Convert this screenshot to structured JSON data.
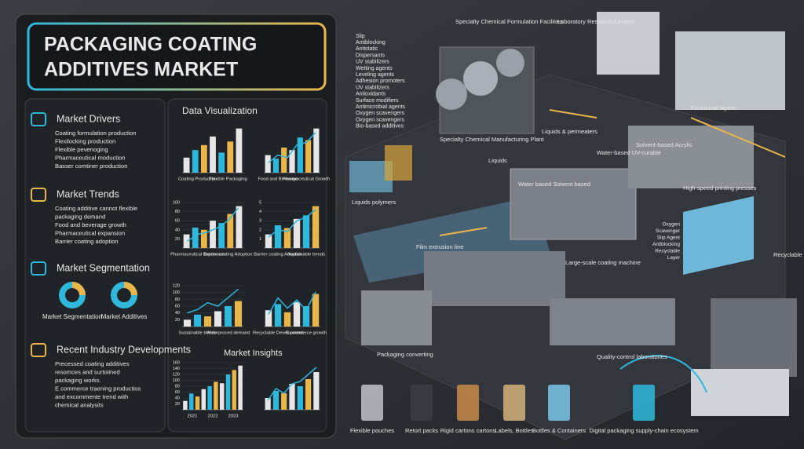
{
  "header": {
    "title_line1": "PACKAGING COATING",
    "title_line2": "ADDITIVES MARKET"
  },
  "sections": [
    {
      "title": "Market Drivers",
      "items": [
        "Coating formulation production",
        "Flexilocking production",
        "Flexible pevenoging",
        "Pharmaceutical moduction",
        "Basser comtiner production"
      ]
    },
    {
      "title": "Market Trends",
      "items": [
        "Coating additive cannot flexible",
        "packaging demand",
        "Food and beverage growth",
        "Pharmaceutical expansion",
        "Barrier coating adoption"
      ]
    },
    {
      "title": "Market Segmentation",
      "items": [
        "Market Segmentation",
        "Market Additives"
      ]
    },
    {
      "title": "Recent Industry Developments",
      "items": [
        "Precessed coating additives",
        "resomces and surtoiined",
        "packaging works.",
        "E commerce traening productios",
        "and excommente trend with",
        "chemical analysits"
      ]
    }
  ],
  "data_visualization": {
    "title": "Data Visualization",
    "insights_title": "Market Insights",
    "palette": [
      "#e6e6e6",
      "#2fb8dc",
      "#e8b64a"
    ],
    "charts": [
      {
        "labels": [
          "Coating Production",
          "Flexible Packaging"
        ],
        "ylim": [
          0,
          100
        ],
        "values": [
          30,
          45,
          55,
          72,
          40,
          62,
          88
        ]
      },
      {
        "labels": [
          "Food and Beverage",
          "Pharmaceutical Growth"
        ],
        "ylim": [
          0,
          100
        ],
        "values": [
          35,
          28,
          50,
          45,
          70,
          65,
          88
        ],
        "line": [
          20,
          35,
          30,
          55,
          60,
          80
        ]
      },
      {
        "labels": [
          "Pharmaceutical Expansion",
          "Barrier coating Adoption"
        ],
        "ylim": [
          0,
          100
        ],
        "yticks": [
          20,
          40,
          60,
          80,
          100
        ],
        "values": [
          30,
          45,
          40,
          60,
          55,
          75,
          92
        ],
        "line": [
          15,
          30,
          35,
          45,
          60,
          88
        ]
      },
      {
        "labels": [
          "Barrier coating Adoption",
          "Sustainable trends"
        ],
        "ylim": [
          0,
          5
        ],
        "yticks": [
          1,
          2,
          3,
          4,
          5
        ],
        "values": [
          1.5,
          2.5,
          2.2,
          3.2,
          3.6,
          4.6
        ],
        "line": [
          1.2,
          2,
          1.8,
          3,
          3.4,
          4.2
        ]
      },
      {
        "labels": [
          "Sustainable trends",
          "Waterproced demand"
        ],
        "ylim": [
          0,
          120
        ],
        "yticks": [
          20,
          40,
          60,
          80,
          100,
          120
        ],
        "values": [
          20,
          35,
          30,
          45,
          60,
          75
        ],
        "line": [
          40,
          50,
          70,
          60,
          85,
          110
        ]
      },
      {
        "labels": [
          "Recyclable Development",
          "E-commerce growth"
        ],
        "ylim": [
          0,
          100
        ],
        "values": [
          40,
          55,
          35,
          60,
          50,
          80
        ],
        "line": [
          30,
          70,
          45,
          65,
          40,
          85
        ]
      },
      {
        "labels": [
          "2021",
          "2022",
          "2023"
        ],
        "ylim": [
          0,
          160
        ],
        "yticks": [
          20,
          40,
          60,
          80,
          100,
          120,
          140,
          160
        ],
        "values": [
          30,
          55,
          45,
          70,
          80,
          95,
          90,
          120,
          135,
          150
        ]
      },
      {
        "labels": [],
        "ylim": [
          0,
          100
        ],
        "values": [
          25,
          40,
          35,
          55,
          50,
          65,
          80
        ],
        "line": [
          20,
          45,
          35,
          55,
          60,
          75,
          90
        ]
      }
    ]
  },
  "illustration": {
    "labels": [
      "Specialty Chemical Formulation Facilities",
      "Laboratory Research Centers",
      "Specialty Chemical Manufacturing Plant",
      "Liquids & permeaters",
      "Liquids",
      "Liquids polymers",
      "Water based Solvent based",
      "Functional layers",
      "Water-based UV-curable",
      "Solvent-based Acrylic",
      "High-speed printing presses",
      "Film extrusion line",
      "Large-scale coating machine",
      "Recyclable Layer",
      "Packaging converting",
      "Quality-control laboratories"
    ],
    "additives": [
      "Slip",
      "Antiblocking",
      "Antistatic",
      "Dispersants",
      "UV stabilizers",
      "Wetting agents",
      "Leveling agents",
      "Adhesion promoters",
      "UV stabilizers",
      "Antioxidants",
      "Surface modifiers",
      "Antimicrobial agents",
      "Oxygen scavengers",
      "Oxygen scavengers",
      "Bio-based additives"
    ],
    "layers": [
      "Oxygen",
      "Scavenger",
      "Slip Agent",
      "Antiblocking",
      "Recyclable",
      "Layer"
    ],
    "products": [
      "Flexible pouches",
      "Retort packs",
      "Rigid cartons cartons",
      "Labels, Bottles",
      "Bottles & Containers",
      "Digital packaging supply-chain ecosystem"
    ]
  }
}
